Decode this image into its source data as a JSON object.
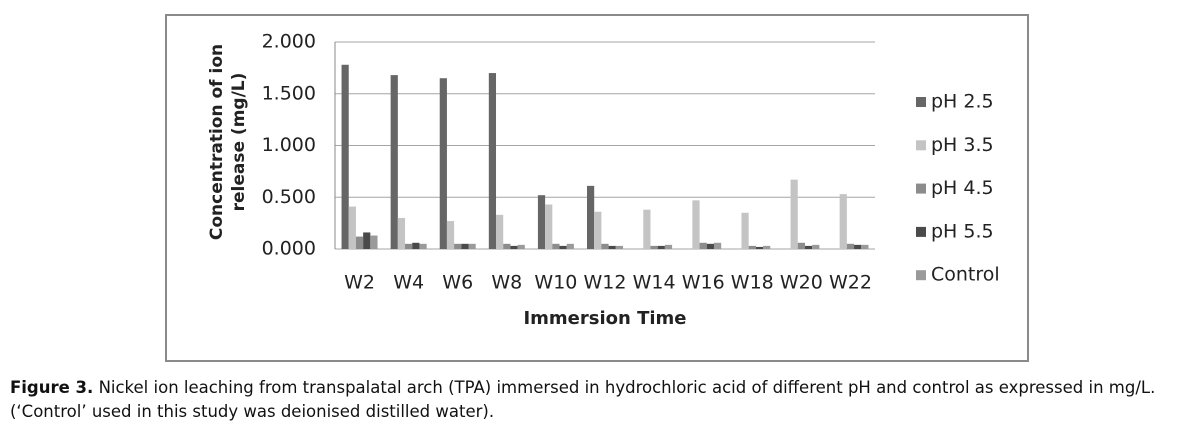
{
  "chart_data": {
    "type": "bar",
    "ylabel": "Concentration of ion release (mg/L)",
    "xlabel": "Immersion Time",
    "categories": [
      "W2",
      "W4",
      "W6",
      "W8",
      "W10",
      "W12",
      "W14",
      "W16",
      "W18",
      "W20",
      "W22"
    ],
    "series": [
      {
        "name": "pH 2.5",
        "color": "#666666",
        "values": [
          1.78,
          1.68,
          1.65,
          1.7,
          0.52,
          0.61,
          0,
          0,
          0,
          0,
          0
        ]
      },
      {
        "name": "pH 3.5",
        "color": "#c4c4c4",
        "values": [
          0.41,
          0.3,
          0.27,
          0.33,
          0.43,
          0.36,
          0.38,
          0.47,
          0.35,
          0.67,
          0.53
        ]
      },
      {
        "name": "pH 4.5",
        "color": "#8c8c8c",
        "values": [
          0.12,
          0.05,
          0.05,
          0.05,
          0.05,
          0.05,
          0.03,
          0.06,
          0.03,
          0.06,
          0.05
        ]
      },
      {
        "name": "pH 5.5",
        "color": "#4a4a4a",
        "values": [
          0.16,
          0.06,
          0.05,
          0.03,
          0.03,
          0.03,
          0.03,
          0.05,
          0.02,
          0.03,
          0.04
        ]
      },
      {
        "name": "Control",
        "color": "#9a9a9a",
        "values": [
          0.13,
          0.05,
          0.05,
          0.04,
          0.05,
          0.03,
          0.04,
          0.06,
          0.03,
          0.04,
          0.04
        ]
      }
    ],
    "ylim": [
      0,
      2
    ],
    "yticks": [
      {
        "value": 0,
        "label": "0.000"
      },
      {
        "value": 0.5,
        "label": "0.500"
      },
      {
        "value": 1,
        "label": "1.000"
      },
      {
        "value": 1.5,
        "label": "1.500"
      },
      {
        "value": 2,
        "label": "2.000"
      }
    ],
    "grid": true,
    "legend": "right"
  },
  "caption": {
    "label": "Figure 3.",
    "text": "Nickel ion leaching from transpalatal arch (TPA) immersed in hydrochloric acid of different pH and control as expressed in mg/L. (‘Control’ used in this study was deionised distilled water)."
  }
}
